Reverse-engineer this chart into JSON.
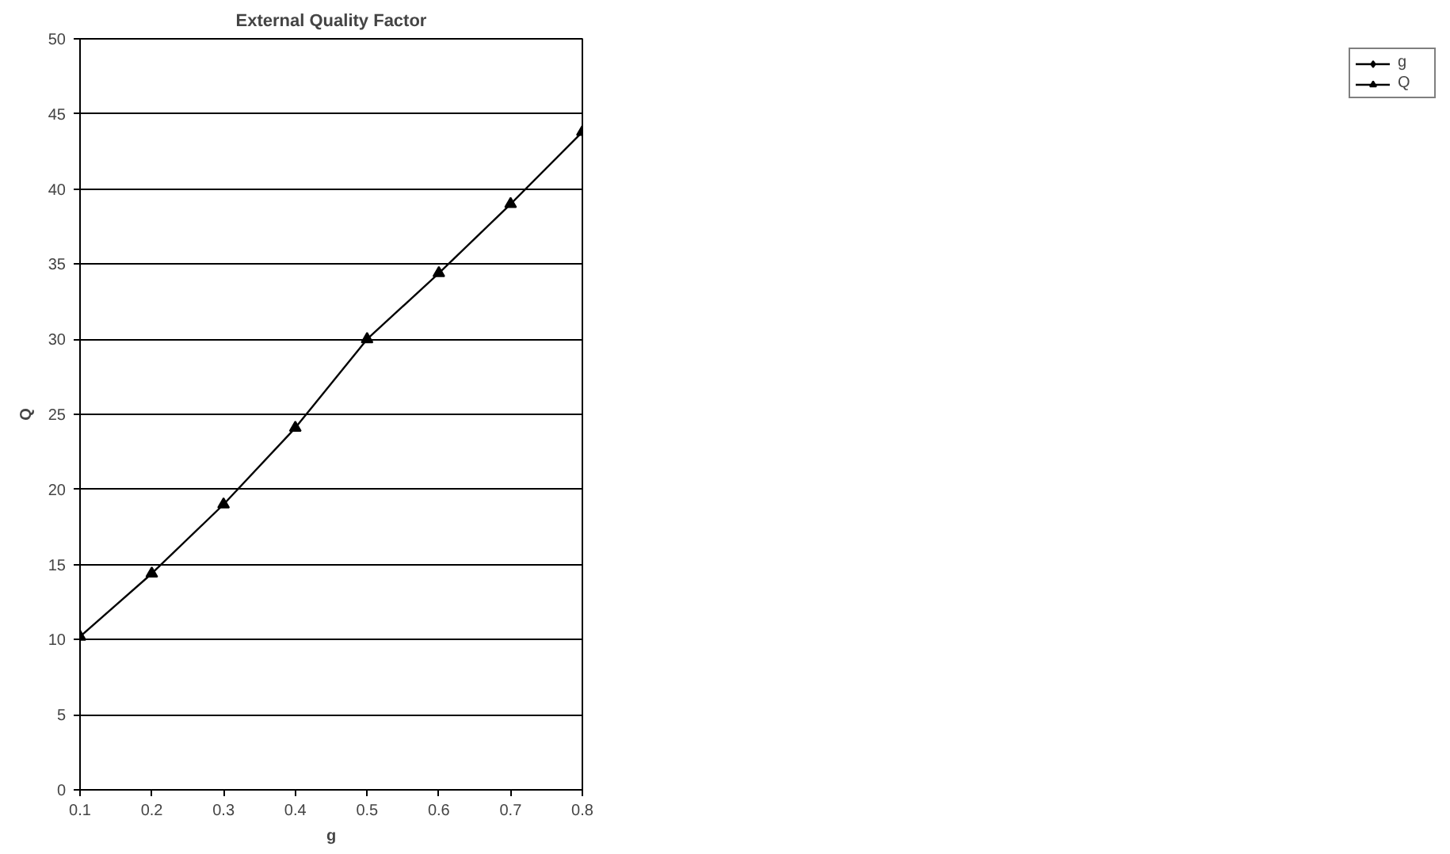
{
  "chart_data": {
    "type": "line",
    "title": "External Quality Factor",
    "xlabel": "g",
    "ylabel": "Q",
    "x": [
      0.1,
      0.2,
      0.3,
      0.4,
      0.5,
      0.6,
      0.7,
      0.8
    ],
    "series": [
      {
        "name": "g",
        "color": "#000000",
        "marker": "diamond",
        "values": [
          null,
          null,
          null,
          null,
          null,
          null,
          null,
          null
        ]
      },
      {
        "name": "Q",
        "color": "#000000",
        "marker": "triangle",
        "values": [
          10.2,
          14.4,
          19.0,
          24.1,
          30.0,
          34.4,
          39.0,
          43.8
        ]
      }
    ],
    "xlim": [
      0.1,
      0.8
    ],
    "xticks": [
      0.1,
      0.2,
      0.3,
      0.4,
      0.5,
      0.6,
      0.7,
      0.8
    ],
    "ylim": [
      0,
      50
    ],
    "yticks": [
      0,
      5,
      10,
      15,
      20,
      25,
      30,
      35,
      40,
      45,
      50
    ],
    "grid": "y",
    "legend": "right",
    "line_style": "solid"
  }
}
